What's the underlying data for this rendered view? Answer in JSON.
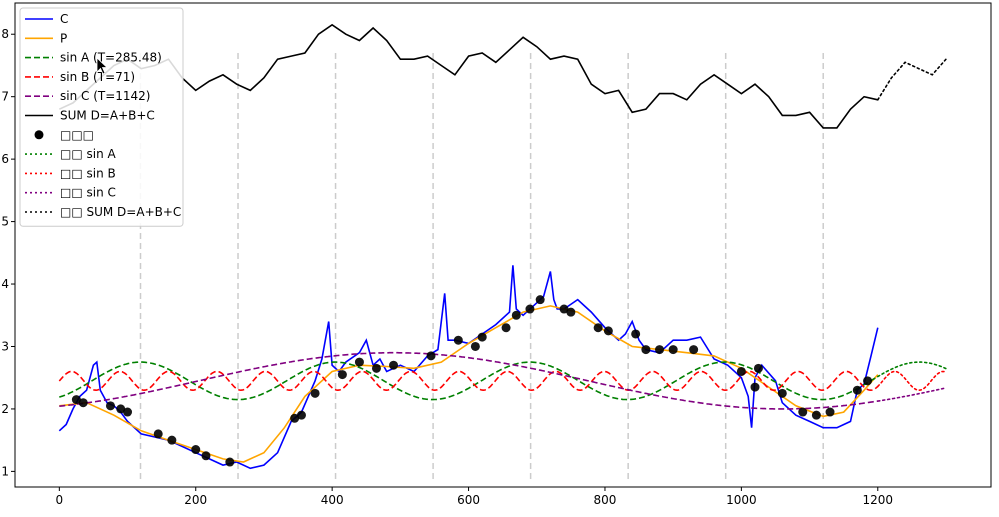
{
  "chart_data": {
    "type": "line",
    "title": "",
    "xlabel": "",
    "ylabel": "",
    "xlim": [
      -65,
      1366
    ],
    "ylim": [
      0.75,
      8.5
    ],
    "x_ticks": [
      0,
      200,
      400,
      600,
      800,
      1000,
      1200
    ],
    "y_ticks": [
      1,
      2,
      3,
      4,
      5,
      6,
      7,
      8
    ],
    "y_tick_labels": [
      "1",
      "2",
      "3",
      "4",
      "5",
      "6",
      "7",
      "8"
    ],
    "vertical_gridlines_at": [
      119,
      262,
      405,
      548,
      691,
      834,
      977,
      1120
    ],
    "legend": {
      "placement": "top-left",
      "entries": [
        {
          "label": "C",
          "color": "#0000ff",
          "style": "solid",
          "marker": "line"
        },
        {
          "label": "P",
          "color": "#ffa500",
          "style": "solid",
          "marker": "line"
        },
        {
          "label": "sin A (T=285.48)",
          "color": "#008000",
          "style": "dashed",
          "marker": "line"
        },
        {
          "label": "sin B (T=71)",
          "color": "#ff0000",
          "style": "dashed",
          "marker": "line"
        },
        {
          "label": "sin C (T=1142)",
          "color": "#800080",
          "style": "dashed",
          "marker": "line"
        },
        {
          "label": "SUM D=A+B+C",
          "color": "#000000",
          "style": "solid",
          "marker": "line"
        },
        {
          "label": "□□□",
          "color": "#000000",
          "style": "none",
          "marker": "dot"
        },
        {
          "label": "□□ sin A",
          "color": "#008000",
          "style": "dotted",
          "marker": "line"
        },
        {
          "label": "□□ sin B",
          "color": "#ff0000",
          "style": "dotted",
          "marker": "line"
        },
        {
          "label": "□□ sin C",
          "color": "#800080",
          "style": "dotted",
          "marker": "line"
        },
        {
          "label": "□□ SUM D=A+B+C",
          "color": "#000000",
          "style": "dotted",
          "marker": "line"
        }
      ]
    },
    "series": [
      {
        "name": "C",
        "color": "#0000ff",
        "style": "solid",
        "x": [
          0,
          10,
          20,
          30,
          40,
          50,
          55,
          60,
          70,
          80,
          90,
          100,
          110,
          120,
          140,
          160,
          180,
          200,
          220,
          240,
          260,
          280,
          300,
          320,
          340,
          355,
          365,
          375,
          385,
          395,
          400,
          410,
          420,
          440,
          450,
          460,
          470,
          480,
          500,
          520,
          540,
          555,
          565,
          570,
          580,
          600,
          620,
          640,
          660,
          665,
          670,
          680,
          700,
          710,
          720,
          725,
          730,
          740,
          760,
          780,
          800,
          820,
          830,
          840,
          850,
          860,
          880,
          900,
          920,
          940,
          960,
          980,
          1000,
          1010,
          1015,
          1020,
          1030,
          1050,
          1060,
          1080,
          1100,
          1120,
          1140,
          1160,
          1170,
          1180,
          1190,
          1200
        ],
        "y": [
          1.65,
          1.75,
          2.0,
          2.2,
          2.3,
          2.7,
          2.75,
          2.3,
          2.1,
          2.05,
          1.95,
          1.8,
          1.7,
          1.6,
          1.55,
          1.5,
          1.4,
          1.3,
          1.2,
          1.1,
          1.15,
          1.05,
          1.1,
          1.3,
          1.8,
          1.95,
          2.2,
          2.45,
          2.8,
          3.4,
          2.7,
          2.6,
          2.75,
          2.9,
          3.1,
          2.7,
          2.8,
          2.6,
          2.7,
          2.6,
          2.85,
          2.95,
          3.85,
          3.1,
          3.1,
          3.05,
          3.2,
          3.35,
          3.55,
          4.3,
          3.6,
          3.5,
          3.7,
          3.8,
          4.2,
          3.75,
          3.6,
          3.6,
          3.75,
          3.55,
          3.3,
          3.1,
          3.2,
          3.4,
          3.1,
          2.95,
          2.9,
          3.1,
          3.1,
          3.15,
          2.8,
          2.7,
          2.5,
          2.2,
          1.7,
          2.5,
          2.7,
          2.45,
          2.1,
          1.9,
          1.8,
          1.7,
          1.7,
          1.8,
          2.3,
          2.4,
          2.85,
          3.3
        ]
      },
      {
        "name": "P",
        "color": "#ffa500",
        "style": "solid",
        "x": [
          0,
          40,
          80,
          120,
          160,
          200,
          240,
          270,
          300,
          330,
          360,
          400,
          440,
          480,
          520,
          560,
          600,
          640,
          680,
          720,
          760,
          800,
          840,
          880,
          920,
          960,
          1000,
          1040,
          1080,
          1120,
          1150,
          1180,
          1200
        ],
        "y": [
          2.05,
          2.1,
          1.9,
          1.65,
          1.5,
          1.35,
          1.2,
          1.15,
          1.3,
          1.7,
          2.2,
          2.6,
          2.7,
          2.68,
          2.65,
          2.75,
          3.05,
          3.3,
          3.55,
          3.65,
          3.55,
          3.25,
          3.0,
          2.95,
          2.9,
          2.85,
          2.65,
          2.35,
          2.05,
          1.88,
          1.95,
          2.3,
          2.55
        ]
      },
      {
        "name": "sin A (T=285.48)",
        "color": "#008000",
        "style": "dashed",
        "func": "sin",
        "period": 285.48,
        "amplitude": 0.3,
        "offset": 2.45,
        "peak_at": 119,
        "x_range": [
          0,
          1200
        ]
      },
      {
        "name": "sin B (T=71)",
        "color": "#ff0000",
        "style": "dashed",
        "func": "sin",
        "period": 71,
        "amplitude": 0.15,
        "offset": 2.45,
        "peak_at": 18,
        "x_range": [
          0,
          1200
        ]
      },
      {
        "name": "sin C (T=1142)",
        "color": "#800080",
        "style": "dashed",
        "func": "sin",
        "period": 1142,
        "amplitude": 0.45,
        "offset": 2.45,
        "peak_at": 490,
        "x_range": [
          0,
          1200
        ]
      },
      {
        "name": "SUM D=A+B+C",
        "color": "#000000",
        "style": "solid",
        "x": [
          0,
          20,
          40,
          60,
          80,
          100,
          120,
          140,
          160,
          180,
          200,
          220,
          240,
          260,
          280,
          300,
          320,
          340,
          360,
          380,
          400,
          420,
          440,
          460,
          480,
          500,
          520,
          540,
          560,
          580,
          600,
          620,
          640,
          660,
          680,
          700,
          720,
          740,
          760,
          780,
          800,
          820,
          840,
          860,
          880,
          900,
          920,
          940,
          960,
          980,
          1000,
          1020,
          1040,
          1060,
          1080,
          1100,
          1120,
          1140,
          1160,
          1180,
          1200
        ],
        "y": [
          6.8,
          6.9,
          7.1,
          7.3,
          7.5,
          7.6,
          7.45,
          7.5,
          7.6,
          7.3,
          7.1,
          7.25,
          7.35,
          7.2,
          7.1,
          7.3,
          7.6,
          7.65,
          7.7,
          8.0,
          8.15,
          8.0,
          7.9,
          8.1,
          7.9,
          7.6,
          7.6,
          7.65,
          7.5,
          7.35,
          7.65,
          7.7,
          7.55,
          7.75,
          7.95,
          7.8,
          7.6,
          7.65,
          7.6,
          7.2,
          7.05,
          7.1,
          6.75,
          6.8,
          7.05,
          7.05,
          6.95,
          7.2,
          7.35,
          7.2,
          7.05,
          7.2,
          7.0,
          6.7,
          6.7,
          6.75,
          6.5,
          6.5,
          6.8,
          7.0,
          6.95
        ]
      },
      {
        "name": "□□ SUM D=A+B+C",
        "color": "#000000",
        "style": "dotted",
        "x": [
          1200,
          1220,
          1240,
          1260,
          1280,
          1300
        ],
        "y": [
          6.95,
          7.3,
          7.55,
          7.45,
          7.35,
          7.6
        ]
      },
      {
        "name": "□□ sin A",
        "color": "#008000",
        "style": "dotted",
        "func": "sin",
        "period": 285.48,
        "amplitude": 0.3,
        "offset": 2.45,
        "peak_at": 119,
        "x_range": [
          1200,
          1300
        ]
      },
      {
        "name": "□□ sin B",
        "color": "#ff0000",
        "style": "dotted",
        "func": "sin",
        "period": 71,
        "amplitude": 0.15,
        "offset": 2.45,
        "peak_at": 18,
        "x_range": [
          1200,
          1300
        ]
      },
      {
        "name": "□□ sin C",
        "color": "#800080",
        "style": "dotted",
        "func": "sin",
        "period": 1142,
        "amplitude": 0.45,
        "offset": 2.45,
        "peak_at": 490,
        "x_range": [
          1200,
          1300
        ]
      }
    ],
    "scatter": {
      "name": "□□□",
      "color": "#000000",
      "x": [
        25,
        35,
        75,
        90,
        100,
        145,
        165,
        200,
        215,
        250,
        345,
        355,
        375,
        415,
        440,
        465,
        490,
        545,
        585,
        610,
        620,
        655,
        670,
        690,
        705,
        740,
        750,
        790,
        805,
        845,
        860,
        880,
        900,
        930,
        1000,
        1020,
        1025,
        1060,
        1090,
        1110,
        1130,
        1170,
        1185
      ],
      "y": [
        2.15,
        2.1,
        2.05,
        2.0,
        1.95,
        1.6,
        1.5,
        1.35,
        1.25,
        1.15,
        1.85,
        1.9,
        2.25,
        2.55,
        2.75,
        2.65,
        2.7,
        2.85,
        3.1,
        3.0,
        3.15,
        3.3,
        3.5,
        3.6,
        3.75,
        3.6,
        3.55,
        3.3,
        3.25,
        3.2,
        2.95,
        2.95,
        2.95,
        2.95,
        2.6,
        2.35,
        2.65,
        2.25,
        1.95,
        1.9,
        1.95,
        2.3,
        2.45
      ]
    },
    "cursor_icon": "mouse-pointer-icon"
  }
}
